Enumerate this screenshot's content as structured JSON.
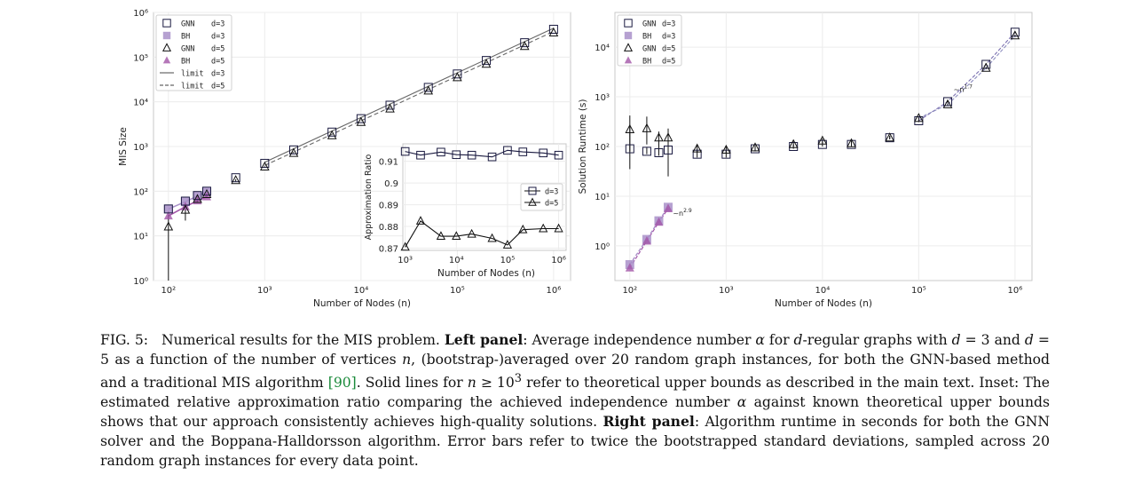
{
  "caption": {
    "label": "FIG. 5:",
    "lead": "Numerical results for the MIS problem.",
    "left_panel_title": "Left panel",
    "part1": ": Average independence number ",
    "alpha": "α",
    "part2": " for ",
    "d": "d",
    "part3": "-regular graphs with ",
    "d3": "d",
    "eq3": " = 3 and ",
    "d5": "d",
    "eq5": " = 5 as a function of the number of vertices ",
    "n1": "n",
    "part4": ", (bootstrap-)averaged over 20 random graph instances, for both the GNN-based method and a traditional MIS algorithm ",
    "citation": "[90]",
    "part5": ". Solid lines for ",
    "n2": "n",
    "part6": " ≥ 10",
    "exp": "3",
    "part7": " refer to theoretical upper bounds as described in the main text. Inset: The estimated relative approximation ratio comparing the achieved independence number ",
    "alpha2": "α",
    "part8": " against known theoretical upper bounds shows that our approach consistently achieves high-quality solutions. ",
    "right_panel_title": "Right panel",
    "part9": ": Algorithm runtime in seconds for both the GNN solver and the Boppana-Halldorsson algorithm. Error bars refer to twice the bootstrapped standard deviations, sampled across 20 random graph instances for every data point."
  },
  "chart_data": [
    {
      "type": "scatter",
      "panel": "left",
      "xlabel": "Number of Nodes (n)",
      "ylabel": "MIS Size",
      "xscale": "log",
      "yscale": "log",
      "xlim": [
        70,
        1500000
      ],
      "ylim": [
        1,
        1000000
      ],
      "x_tick_labels": [
        "10²",
        "10³",
        "10⁴",
        "10⁵",
        "10⁶"
      ],
      "y_tick_labels": [
        "10⁰",
        "10¹",
        "10²",
        "10³",
        "10⁴",
        "10⁵",
        "10⁶"
      ],
      "grid": true,
      "legend_position": "top-left",
      "legend": [
        {
          "name": "GNN",
          "param": "d=3",
          "marker": "square-open"
        },
        {
          "name": "BH",
          "param": "d=3",
          "marker": "square-filled"
        },
        {
          "name": "GNN",
          "param": "d=5",
          "marker": "triangle-open"
        },
        {
          "name": "BH",
          "param": "d=5",
          "marker": "triangle-filled"
        },
        {
          "name": "limit",
          "param": "d=3",
          "marker": "line-solid"
        },
        {
          "name": "limit",
          "param": "d=5",
          "marker": "line-dashed"
        }
      ],
      "series": [
        {
          "id": "gnn3",
          "x": [
            100,
            150,
            200,
            250,
            500,
            1000,
            2000,
            5000,
            10000,
            20000,
            50000,
            100000,
            200000,
            500000,
            1000000
          ],
          "y": [
            40,
            60,
            80,
            100,
            200,
            420,
            840,
            2100,
            4200,
            8400,
            21000,
            42000,
            84000,
            210000,
            420000
          ]
        },
        {
          "id": "bh3",
          "x": [
            100,
            150,
            200,
            250
          ],
          "y": [
            40,
            58,
            78,
            97
          ]
        },
        {
          "id": "gnn5",
          "x": [
            100,
            150,
            200,
            250,
            500,
            1000,
            2000,
            5000,
            10000,
            20000,
            50000,
            100000,
            200000,
            500000,
            1000000
          ],
          "y": [
            16,
            38,
            66,
            85,
            175,
            350,
            710,
            1760,
            3500,
            7000,
            17600,
            35000,
            70000,
            175000,
            350000
          ],
          "err_low": [
            1,
            22,
            55,
            75,
            165,
            340,
            700,
            1750,
            3490,
            6990,
            17590,
            34990,
            69990,
            174990,
            349990
          ],
          "err_high": [
            30,
            55,
            75,
            92,
            185,
            360,
            720,
            1770,
            3510,
            7010,
            17610,
            35010,
            70010,
            175010,
            350010
          ]
        },
        {
          "id": "bh5",
          "x": [
            100,
            150,
            200,
            250
          ],
          "y": [
            28,
            45,
            61,
            75
          ]
        },
        {
          "id": "limit3",
          "x": [
            1000,
            1000000
          ],
          "y": [
            445,
            445000
          ]
        },
        {
          "id": "limit5",
          "x": [
            1000,
            1000000
          ],
          "y": [
            375,
            375000
          ]
        }
      ]
    },
    {
      "type": "line",
      "panel": "left-inset",
      "xlabel": "Number of Nodes (n)",
      "ylabel": "Approximation Ratio",
      "xscale": "log",
      "xlim": [
        900,
        1400000
      ],
      "ylim": [
        0.869,
        0.918
      ],
      "x_tick_labels": [
        "10³",
        "10⁴",
        "10⁵",
        "10⁶"
      ],
      "y_ticks": [
        0.87,
        0.88,
        0.89,
        0.9,
        0.91
      ],
      "y_tick_labels": [
        "0.87",
        "0.88",
        "0.89",
        "0.9",
        "0.91"
      ],
      "legend": [
        {
          "name": "d=3",
          "marker": "square-open"
        },
        {
          "name": "d=5",
          "marker": "triangle-open"
        }
      ],
      "series": [
        {
          "id": "d3",
          "x": [
            1000,
            2000,
            5000,
            10000,
            20000,
            50000,
            100000,
            200000,
            500000,
            1000000
          ],
          "y": [
            0.9145,
            0.9128,
            0.9142,
            0.913,
            0.9128,
            0.912,
            0.915,
            0.9143,
            0.9138,
            0.9128
          ]
        },
        {
          "id": "d5",
          "x": [
            1000,
            2000,
            5000,
            10000,
            20000,
            50000,
            100000,
            200000,
            500000,
            1000000
          ],
          "y": [
            0.8705,
            0.8825,
            0.8755,
            0.8755,
            0.8765,
            0.8745,
            0.8715,
            0.8785,
            0.879,
            0.879
          ]
        }
      ]
    },
    {
      "type": "scatter",
      "panel": "right",
      "xlabel": "Number of Nodes (n)",
      "ylabel": "Solution Runtime (s)",
      "xscale": "log",
      "yscale": "log",
      "xlim": [
        70,
        1500000
      ],
      "ylim": [
        0.2,
        50000
      ],
      "x_tick_labels": [
        "10²",
        "10³",
        "10⁴",
        "10⁵",
        "10⁶"
      ],
      "y_tick_labels": [
        "10⁰",
        "10¹",
        "10²",
        "10³",
        "10⁴"
      ],
      "grid": true,
      "legend_position": "top-left",
      "legend": [
        {
          "name": "GNN",
          "param": "d=3",
          "marker": "square-open"
        },
        {
          "name": "BH",
          "param": "d=3",
          "marker": "square-filled"
        },
        {
          "name": "GNN",
          "param": "d=5",
          "marker": "triangle-open"
        },
        {
          "name": "BH",
          "param": "d=5",
          "marker": "triangle-filled"
        }
      ],
      "annotations": [
        {
          "text": "~n",
          "sup": "1.7",
          "x": 230000,
          "y": 1250
        },
        {
          "text": "~n",
          "sup": "2.9",
          "x": 280,
          "y": 4
        }
      ],
      "series": [
        {
          "id": "gnn3",
          "x": [
            100,
            150,
            200,
            250,
            500,
            1000,
            2000,
            5000,
            10000,
            20000,
            50000,
            100000,
            200000,
            500000,
            1000000
          ],
          "y": [
            90,
            80,
            75,
            85,
            70,
            70,
            90,
            100,
            110,
            110,
            150,
            330,
            800,
            4500,
            20000
          ],
          "err_low": [
            35,
            70,
            65,
            70,
            60,
            60,
            80,
            90,
            100,
            100,
            140,
            310,
            760,
            4300,
            19000
          ],
          "err_high": [
            250,
            95,
            90,
            100,
            85,
            85,
            100,
            110,
            125,
            125,
            165,
            350,
            850,
            4800,
            21000
          ]
        },
        {
          "id": "bh3",
          "x": [
            100,
            150,
            200,
            250
          ],
          "y": [
            0.42,
            1.35,
            3.2,
            6.0
          ]
        },
        {
          "id": "gnn5",
          "x": [
            100,
            150,
            200,
            250,
            500,
            1000,
            2000,
            5000,
            10000,
            20000,
            50000,
            100000,
            200000,
            500000,
            1000000
          ],
          "y": [
            220,
            230,
            150,
            150,
            90,
            85,
            95,
            110,
            130,
            115,
            150,
            370,
            700,
            3800,
            17000
          ],
          "err_low": [
            80,
            110,
            80,
            25,
            75,
            75,
            85,
            100,
            115,
            105,
            140,
            350,
            660,
            3600,
            16000
          ],
          "err_high": [
            420,
            400,
            200,
            230,
            105,
            100,
            105,
            125,
            145,
            130,
            165,
            390,
            740,
            4000,
            18000
          ]
        },
        {
          "id": "bh5",
          "x": [
            100,
            150,
            200,
            250
          ],
          "y": [
            0.36,
            1.25,
            3.0,
            5.6
          ]
        }
      ]
    }
  ]
}
